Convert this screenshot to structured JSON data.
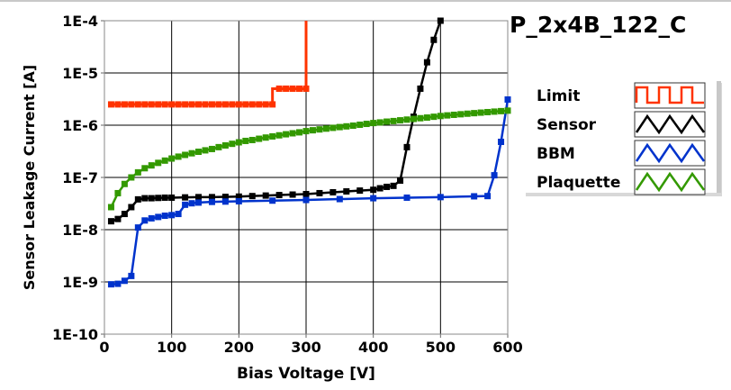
{
  "chart_data": {
    "type": "line",
    "title": "P_2x4B_122_C",
    "xlabel": "Bias Voltage [V]",
    "ylabel": "Sensor Leakage Current [A]",
    "xlim": [
      0,
      600
    ],
    "ylim": [
      1e-10,
      0.0001
    ],
    "yscale": "log",
    "grid": true,
    "legend_position": "right",
    "xticks": [
      0,
      100,
      200,
      300,
      400,
      500,
      600
    ],
    "xtick_labels": [
      "0",
      "100",
      "200",
      "300",
      "400",
      "500",
      "600"
    ],
    "yticks": [
      0.0001,
      1e-05,
      1e-06,
      1e-07,
      1e-08,
      1e-09,
      1e-10
    ],
    "ytick_labels": [
      "1E-4",
      "1E-5",
      "1E-6",
      "1E-7",
      "1E-8",
      "1E-9",
      "1E-10"
    ],
    "series": [
      {
        "name": "Limit",
        "color": "#ff3300",
        "step": true,
        "x": [
          10,
          20,
          30,
          40,
          50,
          60,
          70,
          80,
          90,
          100,
          110,
          120,
          130,
          140,
          150,
          160,
          170,
          180,
          190,
          200,
          210,
          220,
          230,
          240,
          250,
          260,
          270,
          280,
          290,
          300,
          300
        ],
        "y": [
          2.5e-06,
          2.5e-06,
          2.5e-06,
          2.5e-06,
          2.5e-06,
          2.5e-06,
          2.5e-06,
          2.5e-06,
          2.5e-06,
          2.5e-06,
          2.5e-06,
          2.5e-06,
          2.5e-06,
          2.5e-06,
          2.5e-06,
          2.5e-06,
          2.5e-06,
          2.5e-06,
          2.5e-06,
          2.5e-06,
          2.5e-06,
          2.5e-06,
          2.5e-06,
          2.5e-06,
          2.5e-06,
          5e-06,
          5e-06,
          5e-06,
          5e-06,
          5e-06,
          0.0001
        ]
      },
      {
        "name": "Sensor",
        "color": "#000000",
        "x": [
          10,
          20,
          30,
          40,
          50,
          60,
          70,
          80,
          90,
          100,
          120,
          140,
          160,
          180,
          200,
          220,
          240,
          260,
          280,
          300,
          320,
          340,
          360,
          380,
          400,
          410,
          420,
          430,
          440,
          450,
          460,
          470,
          480,
          490,
          500
        ],
        "y": [
          1.45e-08,
          1.6e-08,
          2e-08,
          2.7e-08,
          3.8e-08,
          4e-08,
          4e-08,
          4.05e-08,
          4.1e-08,
          4.1e-08,
          4.15e-08,
          4.2e-08,
          4.2e-08,
          4.25e-08,
          4.3e-08,
          4.4e-08,
          4.5e-08,
          4.6e-08,
          4.7e-08,
          4.8e-08,
          5e-08,
          5.2e-08,
          5.4e-08,
          5.6e-08,
          5.8e-08,
          6.2e-08,
          6.6e-08,
          6.9e-08,
          8.7e-08,
          3.8e-07,
          1.45e-06,
          5e-06,
          1.6e-05,
          4.3e-05,
          0.0001
        ]
      },
      {
        "name": "BBM",
        "color": "#0033cc",
        "x": [
          10,
          20,
          30,
          40,
          50,
          60,
          70,
          80,
          90,
          100,
          110,
          120,
          130,
          140,
          160,
          180,
          200,
          250,
          300,
          350,
          400,
          450,
          500,
          550,
          570,
          580,
          590,
          600
        ],
        "y": [
          9e-10,
          9.2e-10,
          1.05e-09,
          1.3e-09,
          1.1e-08,
          1.5e-08,
          1.65e-08,
          1.75e-08,
          1.85e-08,
          1.9e-08,
          2e-08,
          3e-08,
          3.2e-08,
          3.3e-08,
          3.4e-08,
          3.45e-08,
          3.5e-08,
          3.6e-08,
          3.7e-08,
          3.85e-08,
          4e-08,
          4.1e-08,
          4.2e-08,
          4.35e-08,
          4.4e-08,
          1.1e-07,
          4.8e-07,
          3.1e-06
        ]
      },
      {
        "name": "Plaquette",
        "color": "#339900",
        "x": [
          10,
          20,
          30,
          40,
          50,
          60,
          70,
          80,
          90,
          100,
          110,
          120,
          130,
          140,
          150,
          160,
          170,
          180,
          190,
          200,
          210,
          220,
          230,
          240,
          250,
          260,
          270,
          280,
          290,
          300,
          310,
          320,
          330,
          340,
          350,
          360,
          370,
          380,
          390,
          400,
          410,
          420,
          430,
          440,
          450,
          460,
          470,
          480,
          490,
          500,
          510,
          520,
          530,
          540,
          550,
          560,
          570,
          580,
          590,
          600
        ],
        "y": [
          2.7e-08,
          5e-08,
          7.5e-08,
          1e-07,
          1.25e-07,
          1.5e-07,
          1.7e-07,
          1.9e-07,
          2.1e-07,
          2.3e-07,
          2.5e-07,
          2.7e-07,
          2.9e-07,
          3.1e-07,
          3.3e-07,
          3.5e-07,
          3.8e-07,
          4.1e-07,
          4.4e-07,
          4.7e-07,
          5e-07,
          5.2e-07,
          5.5e-07,
          5.8e-07,
          6.1e-07,
          6.4e-07,
          6.7e-07,
          7e-07,
          7.3e-07,
          7.7e-07,
          8e-07,
          8.3e-07,
          8.6e-07,
          8.9e-07,
          9.2e-07,
          9.5e-07,
          9.8e-07,
          1.02e-06,
          1.06e-06,
          1.1e-06,
          1.13e-06,
          1.17e-06,
          1.2e-06,
          1.24e-06,
          1.28e-06,
          1.32e-06,
          1.36e-06,
          1.4e-06,
          1.45e-06,
          1.5e-06,
          1.54e-06,
          1.58e-06,
          1.62e-06,
          1.66e-06,
          1.7e-06,
          1.74e-06,
          1.78e-06,
          1.82e-06,
          1.86e-06,
          1.9e-06
        ]
      }
    ]
  }
}
